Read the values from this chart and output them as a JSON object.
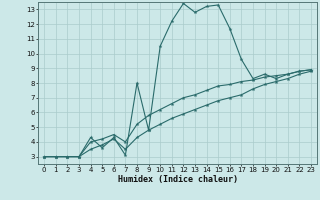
{
  "xlabel": "Humidex (Indice chaleur)",
  "xlim": [
    -0.5,
    23.5
  ],
  "ylim": [
    2.5,
    13.5
  ],
  "yticks": [
    3,
    4,
    5,
    6,
    7,
    8,
    9,
    10,
    11,
    12,
    13
  ],
  "xticks": [
    0,
    1,
    2,
    3,
    4,
    5,
    6,
    7,
    8,
    9,
    10,
    11,
    12,
    13,
    14,
    15,
    16,
    17,
    18,
    19,
    20,
    21,
    22,
    23
  ],
  "background_color": "#cce8e8",
  "grid_color": "#aacccc",
  "line_color": "#2a6b6b",
  "line1_y": [
    3.0,
    3.0,
    3.0,
    3.0,
    4.3,
    3.6,
    4.3,
    3.1,
    8.0,
    4.8,
    10.5,
    12.2,
    13.4,
    12.8,
    13.2,
    13.3,
    11.7,
    9.6,
    8.3,
    8.6,
    8.3,
    8.6,
    8.8,
    8.9
  ],
  "line2_y": [
    3.0,
    3.0,
    3.0,
    3.0,
    3.5,
    3.8,
    4.2,
    3.5,
    4.3,
    4.8,
    5.2,
    5.6,
    5.9,
    6.2,
    6.5,
    6.8,
    7.0,
    7.2,
    7.6,
    7.9,
    8.1,
    8.3,
    8.6,
    8.8
  ],
  "line3_y": [
    3.0,
    3.0,
    3.0,
    3.0,
    4.0,
    4.2,
    4.5,
    4.0,
    5.2,
    5.8,
    6.2,
    6.6,
    7.0,
    7.2,
    7.5,
    7.8,
    7.9,
    8.1,
    8.2,
    8.4,
    8.5,
    8.6,
    8.8,
    8.9
  ]
}
